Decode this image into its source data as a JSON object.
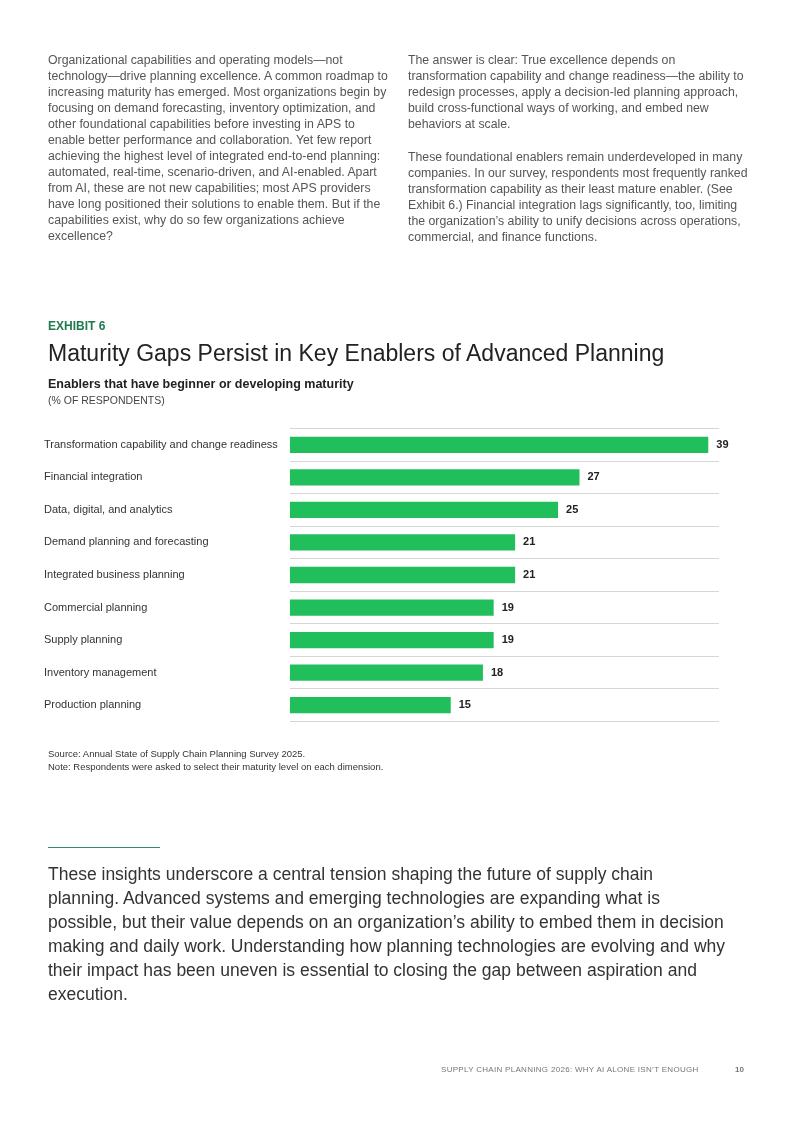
{
  "chart_data": {
    "type": "bar",
    "orientation": "horizontal",
    "title": "Maturity Gaps Persist in Key Enablers of Advanced Planning",
    "subtitle": "Enablers that have beginner or developing maturity",
    "categories": [
      "Transformation capability and change readiness",
      "Financial integration",
      "Data, digital, and analytics",
      "Demand planning and forecasting",
      "Integrated business planning",
      "Commercial planning",
      "Supply planning",
      "Inventory management",
      "Production planning"
    ],
    "values": [
      39,
      27,
      25,
      21,
      21,
      19,
      19,
      18,
      15
    ],
    "color": "#21bf5b",
    "data_labels": true,
    "grid": "y",
    "legend": false,
    "annotations": [
      "Organizational capabilities and operating models—not technology—drive planning excellence. A common roadmap to increasing maturity has emerged. Most organizations begin by focusing on demand forecasting, inventory optimization, and other foundational capabilities before investing in APS to enable better performance and collaboration. Yet few report achieving the highest level of integrated end-to-end planning: automated, real-time, scenario-driven, and AI-enabled. Apart from AI, these are not new capabilities; most APS providers have long positioned their solutions to enable them. But if the capabilities exist, why do so few organizations achieve excellence?",
      "The answer is clear: True excellence depends on transformation capability and change readiness—the ability to redesign processes, apply a decision-led planning approach, build cross-functional ways of working, and embed new behaviors at scale.",
      "These foundational enablers remain underdeveloped in many companies. In our survey, respondents most frequently ranked transformation capability as their least mature enabler. (See Exhibit 6.) Financial integration lags significantly, too, limiting the organization’s ability to unify decisions across operations, commercial, and finance functions.",
      "EXHIBIT 6",
      "(% OF RESPONDENTS)",
      "Source: Annual State of Supply Chain Planning Survey 2025.",
      "Note: Respondents were asked to select their maturity level on each dimension.",
      "These insights underscore a central tension shaping the future of supply chain planning. Advanced systems and emerging technologies are expanding what is possible, but their value depends on an organization’s ability to embed them in decision making and daily work. Understanding how planning technologies are evolving and why their impact has been uneven is essential to closing the gap between aspiration and execution.",
      "SUPPLY CHAIN PLANNING 2026: WHY AI ALONE ISN’T ENOUGH",
      "10"
    ]
  }
}
